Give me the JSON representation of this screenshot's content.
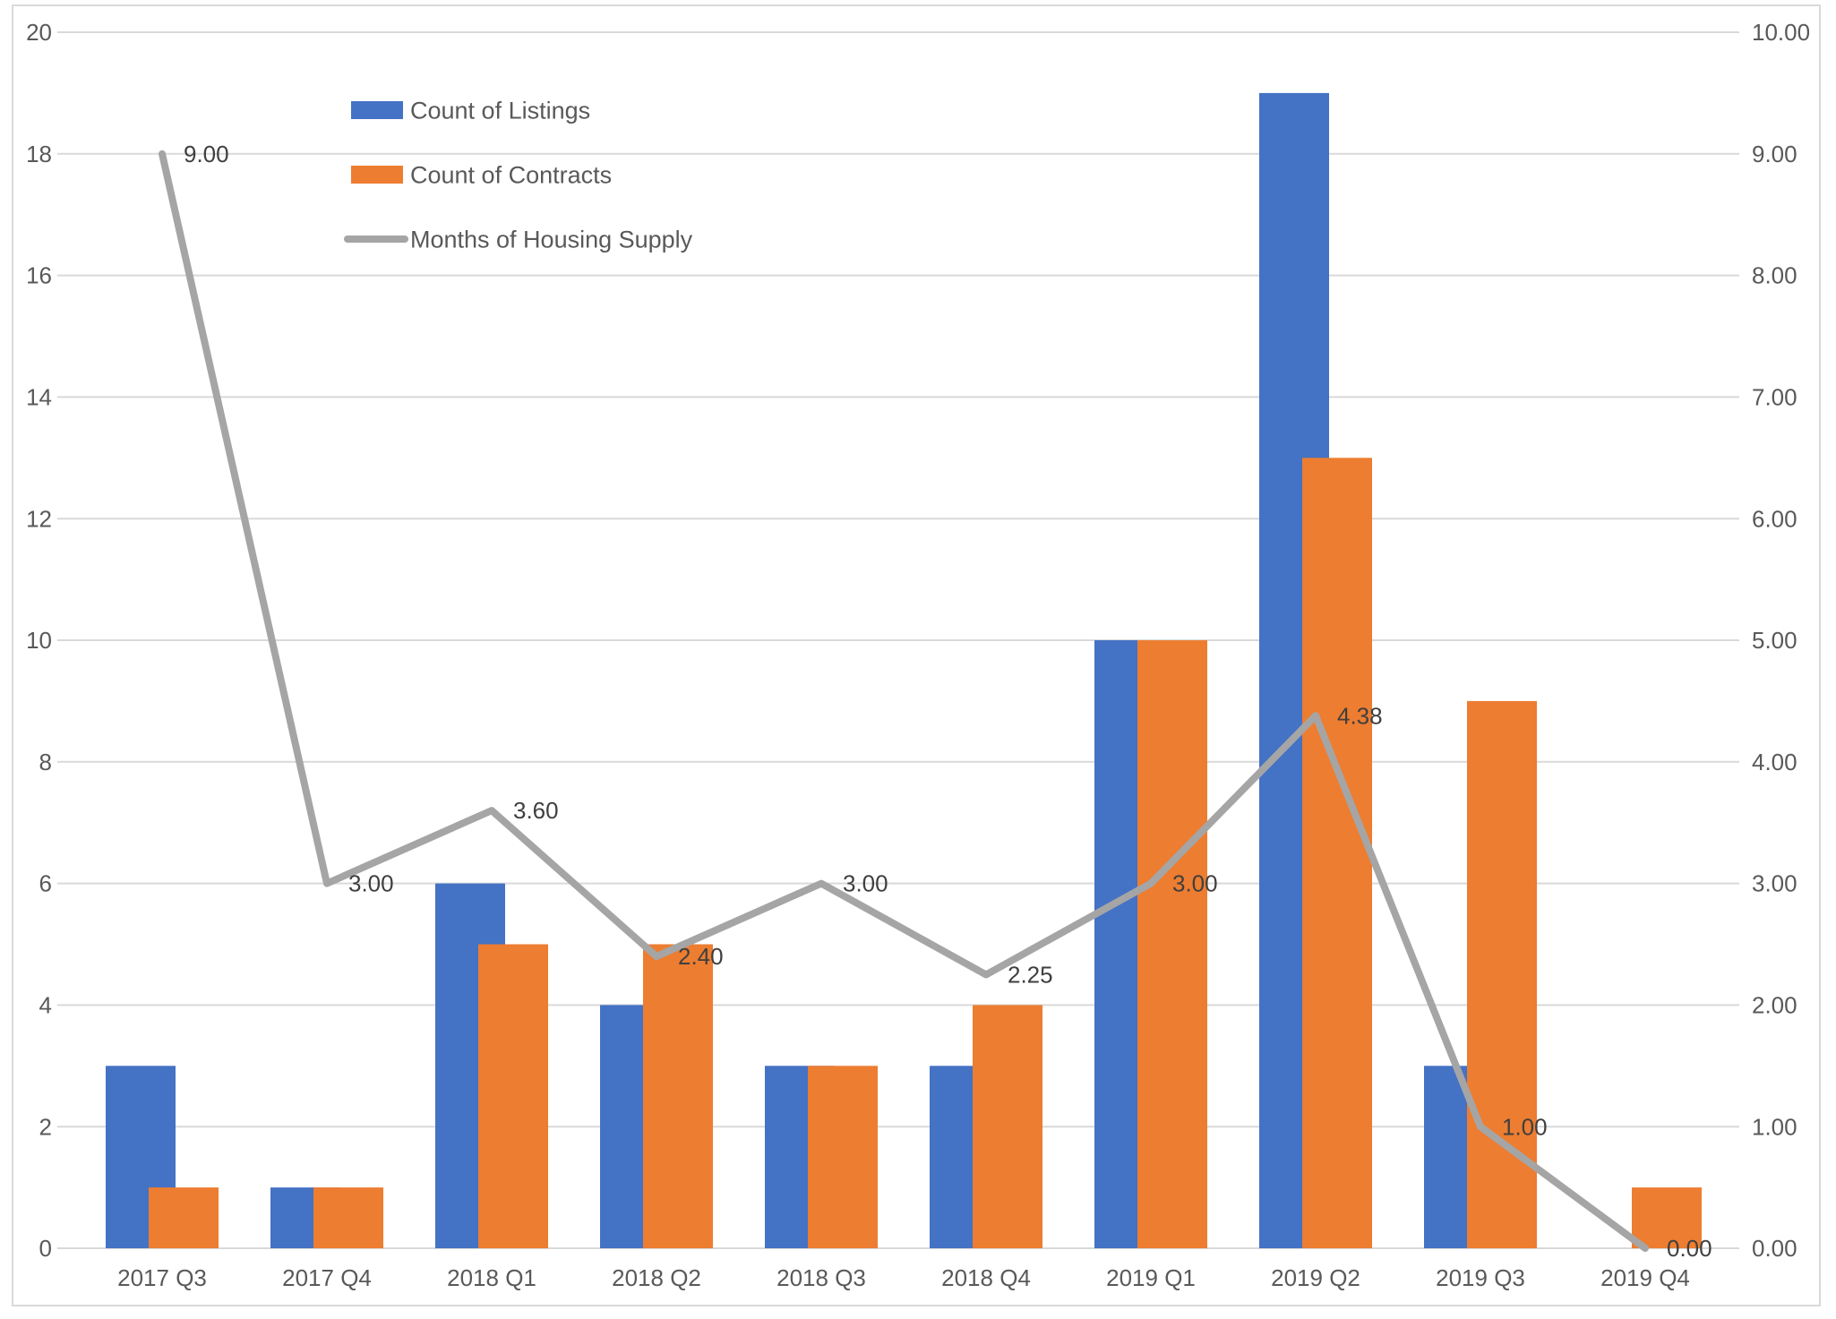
{
  "chart_data": {
    "type": "combo",
    "title": "",
    "categories": [
      "2017 Q3",
      "2017 Q4",
      "2018 Q1",
      "2018 Q2",
      "2018 Q3",
      "2018 Q4",
      "2019 Q1",
      "2019 Q2",
      "2019 Q3",
      "2019 Q4"
    ],
    "series": [
      {
        "name": "Count of Listings",
        "type": "bar",
        "axis": "left",
        "color": "#4472C4",
        "values": [
          3,
          1,
          6,
          4,
          3,
          3,
          10,
          19,
          3,
          0
        ]
      },
      {
        "name": "Count of Contracts",
        "type": "bar",
        "axis": "left",
        "color": "#ED7D31",
        "values": [
          1,
          1,
          5,
          5,
          3,
          4,
          10,
          13,
          9,
          1
        ]
      },
      {
        "name": "Months of Housing Supply",
        "type": "line",
        "axis": "right",
        "color": "#A5A5A5",
        "values": [
          9.0,
          3.0,
          3.6,
          2.4,
          3.0,
          2.25,
          3.0,
          4.38,
          1.0,
          0.0
        ],
        "data_labels": [
          "9.00",
          "3.00",
          "3.60",
          "2.40",
          "3.00",
          "2.25",
          "3.00",
          "4.38",
          "1.00",
          "0.00"
        ]
      }
    ],
    "axes": {
      "left": {
        "min": 0,
        "max": 20,
        "step": 2,
        "decimals": 0
      },
      "right": {
        "min": 0,
        "max": 10,
        "step": 1,
        "decimals": 2
      }
    },
    "grid": true,
    "legend_position": "inset-top-left",
    "colors": {
      "background": "#FFFFFF",
      "gridline": "#D9D9D9",
      "chart_border": "#D9D9D9",
      "axis_text": "#595959",
      "legend_text": "#595959",
      "data_label_text": "#3F3F3F"
    }
  }
}
